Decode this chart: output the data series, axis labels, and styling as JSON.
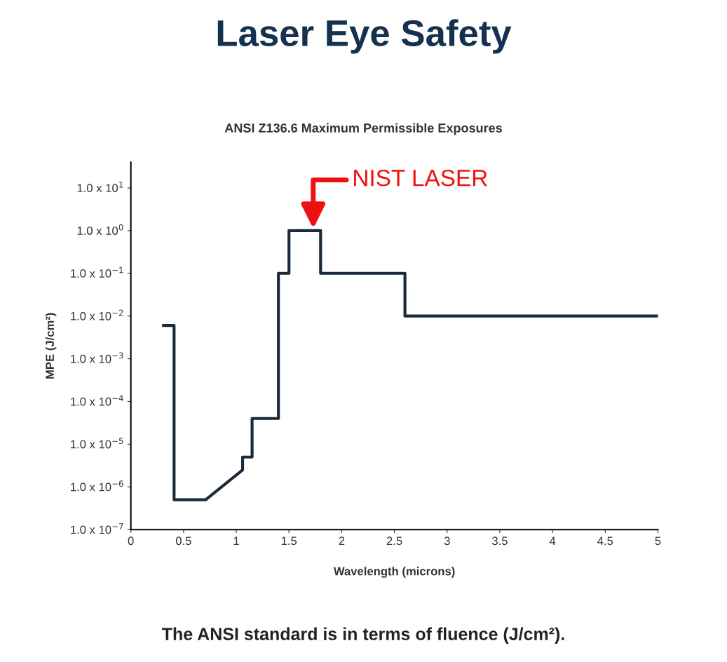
{
  "chart_data": {
    "type": "line",
    "title": "Laser Eye Safety",
    "subtitle": "ANSI Z136.6 Maximum Permissible Exposures",
    "xlabel": "Wavelength (microns)",
    "ylabel": "MPE (J/cm²)",
    "series": [
      {
        "color": "#1b2a3a",
        "x": [
          0.31,
          0.41,
          0.41,
          0.71,
          1.06,
          1.06,
          1.15,
          1.15,
          1.4,
          1.4,
          1.5,
          1.5,
          1.8,
          1.8,
          2.6,
          2.6,
          5.0
        ],
        "values": [
          0.006,
          0.006,
          5e-07,
          5e-07,
          2.5e-06,
          5e-06,
          5e-06,
          4e-05,
          4e-05,
          0.1,
          0.1,
          1,
          1,
          0.1,
          0.1,
          0.01,
          0.01
        ]
      }
    ],
    "log": "y",
    "xlim": [
      0,
      5
    ],
    "ylim": [
      1e-07,
      40
    ],
    "xticks": [
      0,
      0.5,
      1,
      1.5,
      2,
      2.5,
      3,
      3.5,
      4,
      4.5,
      5
    ],
    "yticks": [
      {
        "value": 1e-07,
        "label": "1.0 x 10$^{−7}$"
      },
      {
        "value": 1e-06,
        "label": "1.0 x 10$^{−6}$"
      },
      {
        "value": 1e-05,
        "label": "1.0 x 10$^{−5}$"
      },
      {
        "value": 0.0001,
        "label": "1.0 x 10$^{−4}$"
      },
      {
        "value": 0.001,
        "label": "1.0 x 10$^{−3}$"
      },
      {
        "value": 0.01,
        "label": "1.0 x 10$^{−2}$"
      },
      {
        "value": 0.1,
        "label": "1.0 x 10$^{−1}$"
      },
      {
        "value": 1,
        "label": "1.0 x 10$^{0}$"
      },
      {
        "value": 10,
        "label": "1.0 x 10$^{1}$"
      }
    ],
    "grid": false,
    "legend": false,
    "marker": "none",
    "line_style": "solid",
    "annotations": [
      {
        "text": "NIST LASER",
        "x": 1.73,
        "y": 1
      },
      "The ANSI standard is in terms of fluence (J/cm²)."
    ]
  }
}
